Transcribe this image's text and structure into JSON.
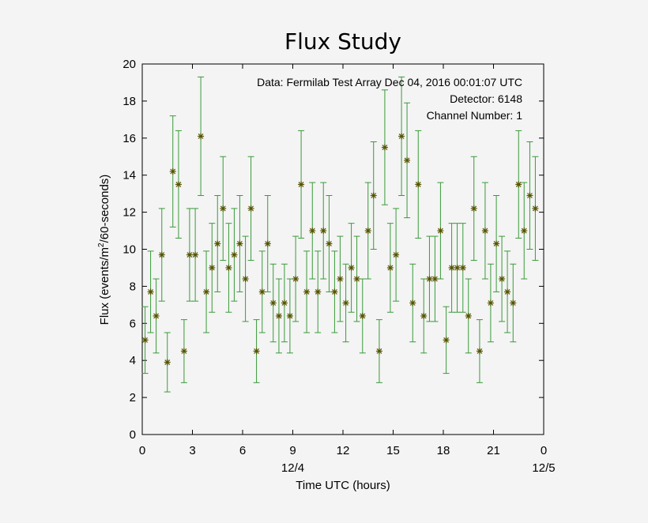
{
  "chart_data": {
    "type": "scatter",
    "title": "Flux Study",
    "xlabel": "Time UTC (hours)",
    "ylabel_prefix": "Flux (events/m",
    "ylabel_sup": "2",
    "ylabel_suffix": "/60-seconds)",
    "xlim": [
      0,
      24
    ],
    "ylim": [
      0,
      20
    ],
    "grid": false,
    "x_ticks": [
      "0",
      "3",
      "6",
      "9",
      "12",
      "15",
      "18",
      "21",
      "0"
    ],
    "x_date_labels": [
      {
        "at": 9,
        "text": "12/4"
      },
      {
        "at": 24,
        "text": "12/5"
      }
    ],
    "y_ticks": [
      "0",
      "2",
      "4",
      "6",
      "8",
      "10",
      "12",
      "14",
      "16",
      "18",
      "20"
    ],
    "annotations": [
      "Data: Fermilab Test Array Dec 04, 2016 00:01:07 UTC",
      "Detector: 6148",
      "Channel Number: 1"
    ],
    "colors": {
      "marker": "#555500",
      "errorbar": "#3a9a3a",
      "axes": "#000000",
      "background": "#f4f4f4"
    },
    "series": [
      {
        "marker": "asterisk",
        "x": [
          0.17,
          0.5,
          0.83,
          1.17,
          1.5,
          1.83,
          2.17,
          2.5,
          2.83,
          3.17,
          3.5,
          3.83,
          4.17,
          4.5,
          4.83,
          5.17,
          5.5,
          5.83,
          6.17,
          6.5,
          6.83,
          7.17,
          7.5,
          7.83,
          8.17,
          8.5,
          8.83,
          9.17,
          9.5,
          9.83,
          10.17,
          10.5,
          10.83,
          11.17,
          11.5,
          11.83,
          12.17,
          12.5,
          12.83,
          13.17,
          13.5,
          13.83,
          14.17,
          14.5,
          14.83,
          15.17,
          15.5,
          15.83,
          16.17,
          16.5,
          16.83,
          17.17,
          17.5,
          17.83,
          18.17,
          18.5,
          18.83,
          19.17,
          19.5,
          19.83,
          20.17,
          20.5,
          20.83,
          21.17,
          21.5,
          21.83,
          22.17,
          22.5,
          22.83,
          23.17,
          23.5
        ],
        "y": [
          5.1,
          7.7,
          6.4,
          9.7,
          3.9,
          14.2,
          13.5,
          4.5,
          9.7,
          9.7,
          16.1,
          7.7,
          9.0,
          10.3,
          12.2,
          9.0,
          9.7,
          10.3,
          8.4,
          12.2,
          4.5,
          7.7,
          10.3,
          7.1,
          6.4,
          7.1,
          6.4,
          8.4,
          13.5,
          7.7,
          11.0,
          7.7,
          11.0,
          10.3,
          7.7,
          8.4,
          7.1,
          9.0,
          8.4,
          6.4,
          11.0,
          12.9,
          4.5,
          15.5,
          9.0,
          9.7,
          16.1,
          14.8,
          7.1,
          13.5,
          6.4,
          8.4,
          8.4,
          11.0,
          5.1,
          9.0,
          9.0,
          9.0,
          6.4,
          12.2,
          4.5,
          11.0,
          7.1,
          10.3,
          8.4,
          7.7,
          7.1,
          13.5,
          11.0,
          12.9,
          12.2
        ],
        "yerr": [
          1.8,
          2.2,
          2.0,
          2.5,
          1.6,
          3.0,
          2.9,
          1.7,
          2.5,
          2.5,
          3.2,
          2.2,
          2.4,
          2.6,
          2.8,
          2.4,
          2.5,
          2.6,
          2.3,
          2.8,
          1.7,
          2.2,
          2.6,
          2.1,
          2.0,
          2.1,
          2.0,
          2.3,
          2.9,
          2.2,
          2.6,
          2.2,
          2.6,
          2.6,
          2.2,
          2.3,
          2.1,
          2.4,
          2.3,
          2.0,
          2.6,
          2.9,
          1.7,
          3.1,
          2.4,
          2.5,
          3.2,
          3.1,
          2.1,
          2.9,
          2.0,
          2.3,
          2.3,
          2.6,
          1.8,
          2.4,
          2.4,
          2.4,
          2.0,
          2.8,
          1.7,
          2.6,
          2.1,
          2.6,
          2.3,
          2.2,
          2.1,
          2.9,
          2.6,
          2.9,
          2.8
        ]
      }
    ]
  }
}
